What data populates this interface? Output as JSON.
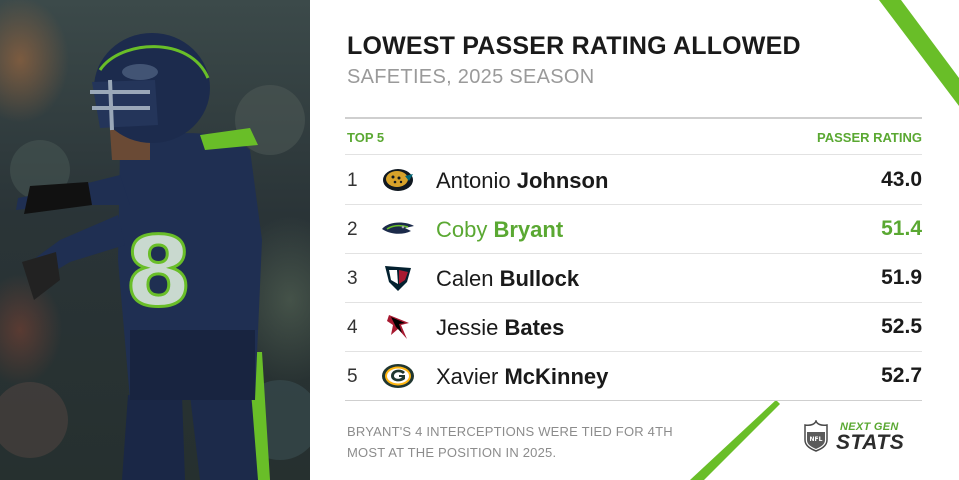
{
  "title": "LOWEST PASSER RATING ALLOWED",
  "subtitle": "SAFETIES, 2025 SEASON",
  "table": {
    "col_left": "TOP 5",
    "col_right": "PASSER RATING",
    "rows": [
      {
        "rank": "1",
        "first": "Antonio",
        "last": "Johnson",
        "value": "43.0",
        "team_logo": "jaguars-logo"
      },
      {
        "rank": "2",
        "first": "Coby",
        "last": "Bryant",
        "value": "51.4",
        "team_logo": "seahawks-logo"
      },
      {
        "rank": "3",
        "first": "Calen",
        "last": "Bullock",
        "value": "51.9",
        "team_logo": "texans-logo"
      },
      {
        "rank": "4",
        "first": "Jessie",
        "last": "Bates",
        "value": "52.5",
        "team_logo": "falcons-logo"
      },
      {
        "rank": "5",
        "first": "Xavier",
        "last": "McKinney",
        "value": "52.7",
        "team_logo": "packers-logo"
      }
    ]
  },
  "footnote": "BRYANT'S 4 INTERCEPTIONS WERE TIED FOR 4TH MOST AT THE POSITION IN 2025.",
  "branding": {
    "league": "NFL",
    "line1": "NEXT GEN",
    "line2": "STATS"
  },
  "player_photo": {
    "jersey_number": "8"
  },
  "colors": {
    "accent": "#5aa832",
    "accent_bright": "#69be28",
    "text": "#1a1a1a",
    "muted": "#9a9a9a",
    "navy": "#1b2a4a"
  }
}
